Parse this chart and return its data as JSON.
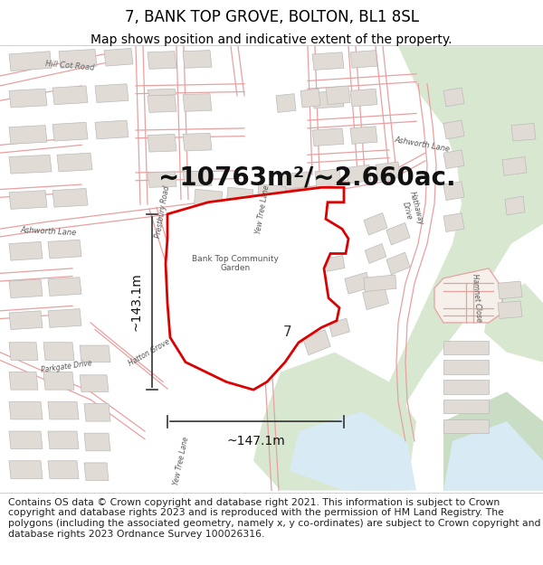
{
  "title": "7, BANK TOP GROVE, BOLTON, BL1 8SL",
  "subtitle": "Map shows position and indicative extent of the property.",
  "area_text": "~10763m²/~2.660ac.",
  "dim_horizontal": "~147.1m",
  "dim_vertical": "~143.1m",
  "property_label": "7",
  "footer_text": "Contains OS data © Crown copyright and database right 2021. This information is subject to Crown copyright and database rights 2023 and is reproduced with the permission of HM Land Registry. The polygons (including the associated geometry, namely x, y co-ordinates) are subject to Crown copyright and database rights 2023 Ordnance Survey 100026316.",
  "map_bg": "#f5f0ea",
  "road_line_color": "#e8a0a0",
  "road_fill_color": "#f5f0ea",
  "property_fill": "#ffffff",
  "property_stroke": "#dd0000",
  "green_color": "#d8e8d0",
  "green_dark": "#c8ddc4",
  "building_fill": "#e0dbd4",
  "building_stroke": "#bbbbbb",
  "water_color": "#d8eaf4",
  "dim_color": "#333333",
  "title_fontsize": 12,
  "subtitle_fontsize": 10,
  "area_fontsize": 20,
  "dim_fontsize": 10,
  "footer_fontsize": 7.8,
  "label_fontsize": 11,
  "road_label_fontsize": 6,
  "road_lw": 0.9,
  "building_lw": 0.5
}
